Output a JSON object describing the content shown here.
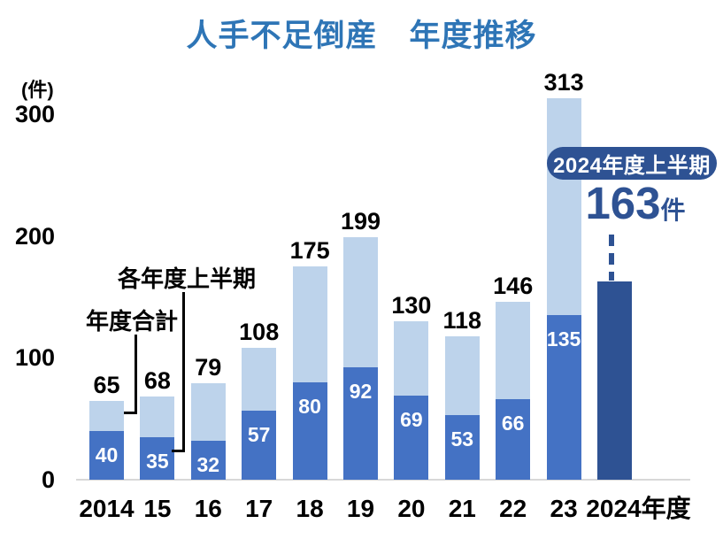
{
  "title": "人手不足倒産　年度推移",
  "y_axis": {
    "unit_label": "(件)",
    "ticks": [
      300,
      200,
      100,
      0
    ]
  },
  "callouts": {
    "total_label": "年度合計",
    "half_label": "各年度上半期"
  },
  "annotation": {
    "badge_label": "2024年度上半期",
    "value": "163",
    "unit": "件"
  },
  "colors": {
    "title_blue": "#2E75B6",
    "bar_total_light": "#BDD3EB",
    "bar_half_blue": "#4472C4",
    "bar_2024_navy": "#2E5293",
    "axis_line_gray": "#D8D8D8",
    "label_black": "#000000",
    "label_white": "#FFFFFF"
  },
  "chart_data": {
    "type": "bar",
    "stacked": true,
    "title": "人手不足倒産　年度推移",
    "ylabel": "(件)",
    "ylim": [
      0,
      330
    ],
    "grid": false,
    "legend_position": "none",
    "categories": [
      "2014",
      "15",
      "16",
      "17",
      "18",
      "19",
      "20",
      "21",
      "22",
      "23",
      "2024年度"
    ],
    "series": [
      {
        "name": "年度合計",
        "values": [
          65,
          68,
          79,
          108,
          175,
          199,
          130,
          118,
          146,
          313,
          null
        ]
      },
      {
        "name": "各年度上半期",
        "values": [
          40,
          35,
          32,
          57,
          80,
          92,
          69,
          53,
          66,
          135,
          163
        ]
      }
    ],
    "annotation_text": "2024年度上半期 163件"
  }
}
